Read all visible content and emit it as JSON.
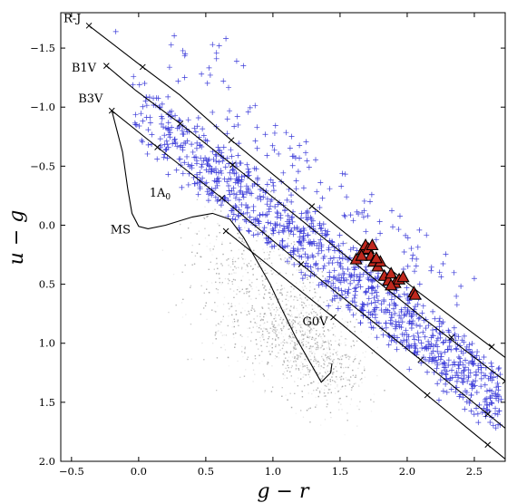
{
  "chart_data": {
    "type": "scatter",
    "title": "",
    "xlabel": "g − r",
    "ylabel": "u − g",
    "xlim": [
      -0.58,
      2.73
    ],
    "ylim": [
      2.0,
      -1.8
    ],
    "y_inverted": true,
    "grid": false,
    "xticks": [
      "−0.5",
      "0.0",
      "0.5",
      "1.0",
      "1.5",
      "2.0",
      "2.5"
    ],
    "xtick_values": [
      -0.5,
      0.0,
      0.5,
      1.0,
      1.5,
      2.0,
      2.5
    ],
    "yticks": [
      "−1.5",
      "−1.0",
      "−0.5",
      "0.0",
      "0.5",
      "1.0",
      "1.5",
      "2.0"
    ],
    "ytick_values": [
      -1.5,
      -1.0,
      -0.5,
      0.0,
      0.5,
      1.0,
      1.5,
      2.0
    ],
    "annotations": [
      {
        "text": "R-J",
        "x": -0.56,
        "y": -1.72
      },
      {
        "text": "B1V",
        "x": -0.5,
        "y": -1.3
      },
      {
        "text": "B3V",
        "x": -0.45,
        "y": -1.04
      },
      {
        "text": "1A",
        "sub": "0",
        "x": 0.08,
        "y": -0.24
      },
      {
        "text": "MS",
        "x": -0.21,
        "y": 0.07
      },
      {
        "text": "G0V",
        "x": 1.22,
        "y": 0.85
      }
    ],
    "colors": {
      "background_points": "#9a9a9a",
      "plus_markers": "#3a3ad8",
      "triangles": "#c0281e",
      "lines": "#000000"
    },
    "reddening_lines": [
      {
        "name": "R-J",
        "points": [
          [
            -0.37,
            -1.69
          ],
          [
            0.03,
            -1.34
          ],
          [
            0.31,
            -1.1
          ],
          [
            0.69,
            -0.72
          ],
          [
            1.29,
            -0.16
          ],
          [
            2.1,
            0.58
          ],
          [
            2.73,
            1.12
          ]
        ]
      },
      {
        "name": "B1V",
        "points": [
          [
            -0.24,
            -1.35
          ],
          [
            -0.02,
            -1.14
          ],
          [
            0.31,
            -0.86
          ],
          [
            0.7,
            -0.51
          ],
          [
            1.27,
            0.01
          ],
          [
            2.1,
            0.77
          ],
          [
            2.73,
            1.32
          ]
        ]
      },
      {
        "name": "B3V",
        "points": [
          [
            -0.2,
            -0.97
          ],
          [
            0.14,
            -0.66
          ],
          [
            0.62,
            -0.23
          ],
          [
            1.21,
            0.33
          ],
          [
            2.1,
            1.14
          ],
          [
            2.73,
            1.72
          ]
        ]
      },
      {
        "name": "G0V",
        "points": [
          [
            0.65,
            0.05
          ],
          [
            1.45,
            0.78
          ],
          [
            2.15,
            1.44
          ],
          [
            2.6,
            1.86
          ],
          [
            2.73,
            1.98
          ]
        ]
      }
    ],
    "reddening_markers": [
      [
        -0.37,
        -1.69
      ],
      [
        0.03,
        -1.34
      ],
      [
        0.69,
        -0.72
      ],
      [
        1.29,
        -0.16
      ],
      [
        2.63,
        1.03
      ],
      [
        -0.24,
        -1.35
      ],
      [
        0.31,
        -0.86
      ],
      [
        0.7,
        -0.51
      ],
      [
        2.33,
        0.95
      ],
      [
        2.73,
        1.32
      ],
      [
        -0.2,
        -0.97
      ],
      [
        0.14,
        -0.66
      ],
      [
        0.62,
        -0.23
      ],
      [
        1.21,
        0.33
      ],
      [
        2.1,
        1.14
      ],
      [
        2.6,
        1.6
      ],
      [
        0.65,
        0.05
      ],
      [
        1.45,
        0.78
      ],
      [
        2.15,
        1.44
      ],
      [
        2.6,
        1.86
      ]
    ],
    "ms_locus": [
      [
        -0.2,
        -0.97
      ],
      [
        -0.12,
        -0.62
      ],
      [
        -0.08,
        -0.3
      ],
      [
        -0.05,
        -0.1
      ],
      [
        0.0,
        0.01
      ],
      [
        0.07,
        0.03
      ],
      [
        0.2,
        0.0
      ],
      [
        0.4,
        -0.07
      ],
      [
        0.55,
        -0.1
      ],
      [
        0.68,
        -0.05
      ],
      [
        0.78,
        0.1
      ],
      [
        0.88,
        0.3
      ],
      [
        0.98,
        0.5
      ],
      [
        1.07,
        0.72
      ],
      [
        1.17,
        0.95
      ],
      [
        1.27,
        1.15
      ],
      [
        1.36,
        1.33
      ],
      [
        1.43,
        1.25
      ],
      [
        1.44,
        1.17
      ]
    ],
    "stellar_locus_cloud": {
      "description_free": true,
      "core": [
        [
          1.1,
          0.75
        ],
        [
          1.3,
          1.0
        ],
        [
          1.5,
          1.4
        ]
      ]
    },
    "triangle_points": [
      [
        1.62,
        0.29
      ],
      [
        1.67,
        0.21
      ],
      [
        1.69,
        0.17
      ],
      [
        1.71,
        0.2
      ],
      [
        1.73,
        0.26
      ],
      [
        1.75,
        0.31
      ],
      [
        1.74,
        0.17
      ],
      [
        1.78,
        0.35
      ],
      [
        1.8,
        0.31
      ],
      [
        1.83,
        0.43
      ],
      [
        1.86,
        0.47
      ],
      [
        1.88,
        0.41
      ],
      [
        1.91,
        0.49
      ],
      [
        1.94,
        0.46
      ],
      [
        1.97,
        0.44
      ],
      [
        2.05,
        0.57
      ],
      [
        2.06,
        0.59
      ],
      [
        1.88,
        0.51
      ],
      [
        1.66,
        0.26
      ],
      [
        1.77,
        0.28
      ]
    ]
  }
}
